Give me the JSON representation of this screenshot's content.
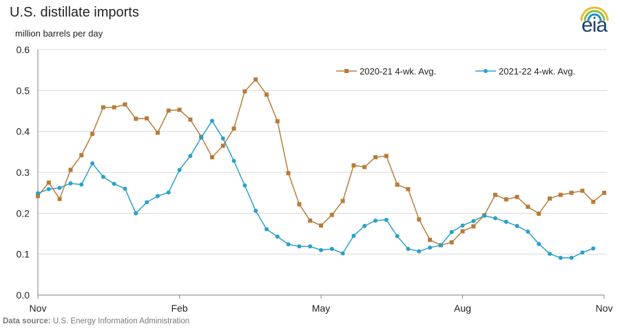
{
  "title": "U.S. distillate imports",
  "unit_label": "million barrels per day",
  "source_label": "Data source:",
  "source_text": "U.S. Energy Information Administration",
  "logo_text": "eia",
  "colors": {
    "series1": "#b87b3a",
    "series2": "#2aa0c8",
    "grid": "#d9d9d9",
    "axis": "#7f7f7f"
  },
  "chart_data": {
    "type": "line",
    "x_tick_labels": [
      "Nov",
      "Feb",
      "May",
      "Aug",
      "Nov"
    ],
    "y_tick_labels": [
      "0.0",
      "0.1",
      "0.2",
      "0.3",
      "0.4",
      "0.5",
      "0.6"
    ],
    "ylim": [
      0,
      0.6
    ],
    "grid": true,
    "legend_position": "top-right",
    "series": [
      {
        "name": "2020-21 4-wk. Avg.",
        "marker": "square",
        "values": [
          0.242,
          0.275,
          0.235,
          0.306,
          0.342,
          0.394,
          0.459,
          0.459,
          0.466,
          0.431,
          0.432,
          0.397,
          0.451,
          0.453,
          0.429,
          0.387,
          0.337,
          0.365,
          0.407,
          0.498,
          0.527,
          0.49,
          0.425,
          0.298,
          0.222,
          0.182,
          0.17,
          0.196,
          0.23,
          0.317,
          0.313,
          0.337,
          0.34,
          0.27,
          0.259,
          0.185,
          0.135,
          0.122,
          0.129,
          0.156,
          0.168,
          0.195,
          0.245,
          0.234,
          0.24,
          0.216,
          0.199,
          0.236,
          0.245,
          0.25,
          0.255,
          0.228,
          0.25
        ]
      },
      {
        "name": "2021-22 4-wk. Avg.",
        "marker": "circle",
        "values": [
          0.249,
          0.259,
          0.262,
          0.273,
          0.27,
          0.322,
          0.289,
          0.272,
          0.26,
          0.2,
          0.227,
          0.242,
          0.251,
          0.306,
          0.34,
          0.385,
          0.426,
          0.383,
          0.328,
          0.268,
          0.206,
          0.161,
          0.143,
          0.124,
          0.119,
          0.119,
          0.11,
          0.113,
          0.102,
          0.145,
          0.169,
          0.182,
          0.184,
          0.144,
          0.113,
          0.107,
          0.116,
          0.122,
          0.154,
          0.17,
          0.181,
          0.194,
          0.188,
          0.179,
          0.169,
          0.155,
          0.125,
          0.101,
          0.091,
          0.091,
          0.104,
          0.114
        ]
      }
    ]
  }
}
